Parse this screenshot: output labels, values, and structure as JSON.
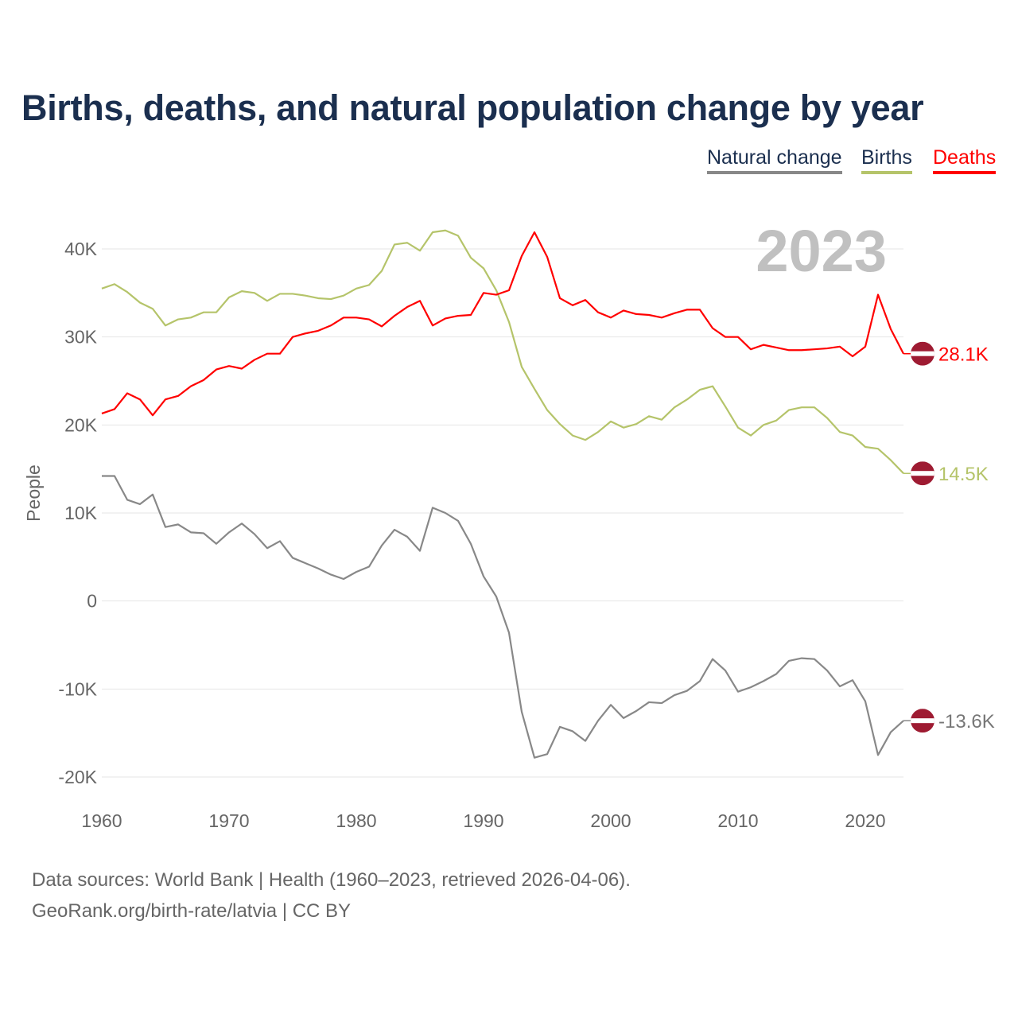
{
  "chart_data": {
    "type": "line",
    "title": "Births, deaths, and natural population change by year",
    "ylabel": "People",
    "xlabel": "",
    "xlim": [
      1960,
      2023
    ],
    "ylim": [
      -20000,
      40000
    ],
    "x_ticks": [
      1960,
      1970,
      1980,
      1990,
      2000,
      2010,
      2020
    ],
    "y_ticks": [
      -20000,
      -10000,
      0,
      10000,
      20000,
      30000,
      40000
    ],
    "y_tick_labels": [
      "-20K",
      "-10K",
      "0",
      "10K",
      "20K",
      "30K",
      "40K"
    ],
    "grid": true,
    "legend_position": "top-right",
    "year_label": "2023",
    "x_start": 1960,
    "series": [
      {
        "name": "Natural change",
        "color": "#888888",
        "end_label": "-13.6K",
        "values": [
          14.2,
          14.2,
          11.5,
          11.0,
          12.1,
          8.4,
          8.7,
          7.8,
          7.7,
          6.5,
          7.8,
          8.8,
          7.6,
          6.0,
          6.8,
          4.9,
          4.3,
          3.7,
          3.0,
          2.5,
          3.3,
          3.9,
          6.3,
          8.1,
          7.3,
          5.7,
          10.6,
          10.0,
          9.1,
          6.5,
          2.8,
          0.5,
          -3.6,
          -12.6,
          -17.8,
          -17.4,
          -14.3,
          -14.8,
          -15.9,
          -13.6,
          -11.8,
          -13.3,
          -12.5,
          -11.5,
          -11.6,
          -10.7,
          -10.2,
          -9.1,
          -6.6,
          -7.9,
          -10.3,
          -9.8,
          -9.1,
          -8.3,
          -6.8,
          -6.5,
          -6.6,
          -7.9,
          -9.7,
          -9.0,
          -11.4,
          -17.5,
          -14.9,
          -13.6
        ]
      },
      {
        "name": "Births",
        "color": "#b5c46a",
        "end_label": "14.5K",
        "values": [
          35.5,
          36.0,
          35.1,
          33.9,
          33.2,
          31.3,
          32.0,
          32.2,
          32.8,
          32.8,
          34.5,
          35.2,
          35.0,
          34.1,
          34.9,
          34.9,
          34.7,
          34.4,
          34.3,
          34.7,
          35.5,
          35.9,
          37.5,
          40.5,
          40.7,
          39.8,
          41.9,
          42.1,
          41.5,
          39.0,
          37.8,
          35.3,
          31.7,
          26.6,
          24.1,
          21.7,
          20.1,
          18.8,
          18.3,
          19.2,
          20.4,
          19.7,
          20.1,
          21.0,
          20.6,
          22.0,
          22.9,
          24.0,
          24.4,
          22.1,
          19.7,
          18.8,
          20.0,
          20.5,
          21.7,
          22.0,
          22.0,
          20.8,
          19.2,
          18.8,
          17.5,
          17.3,
          16.0,
          14.5
        ]
      },
      {
        "name": "Deaths",
        "color": "#ff0000",
        "end_label": "28.1K",
        "values": [
          21.3,
          21.8,
          23.6,
          22.9,
          21.1,
          22.9,
          23.3,
          24.4,
          25.1,
          26.3,
          26.7,
          26.4,
          27.4,
          28.1,
          28.1,
          30.0,
          30.4,
          30.7,
          31.3,
          32.2,
          32.2,
          32.0,
          31.2,
          32.4,
          33.4,
          34.1,
          31.3,
          32.1,
          32.4,
          32.5,
          35.0,
          34.8,
          35.3,
          39.2,
          41.9,
          39.1,
          34.4,
          33.6,
          34.2,
          32.8,
          32.2,
          33.0,
          32.6,
          32.5,
          32.2,
          32.7,
          33.1,
          33.1,
          31.0,
          30.0,
          30.0,
          28.6,
          29.1,
          28.8,
          28.5,
          28.5,
          28.6,
          28.7,
          28.9,
          27.8,
          28.9,
          34.8,
          30.9,
          28.1
        ]
      }
    ],
    "values_unit": "thousands of people"
  },
  "legend": [
    "Natural change",
    "Births",
    "Deaths"
  ],
  "footer": {
    "line1": "Data sources: World Bank | Health (1960–2023, retrieved 2026-04-06).",
    "line2": "GeoRank.org/birth-rate/latvia | CC BY"
  },
  "flag_colors": {
    "red": "#9e1b32",
    "white": "#ffffff"
  }
}
